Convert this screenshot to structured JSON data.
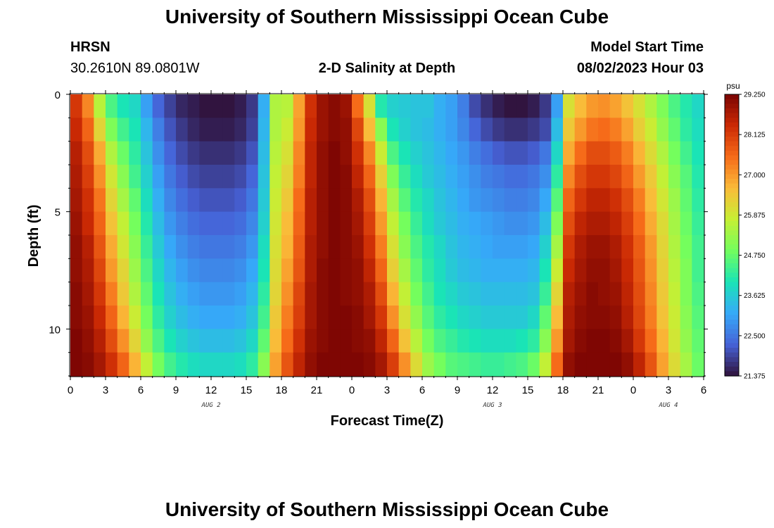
{
  "page": {
    "title": "University of Southern Mississippi Ocean Cube",
    "footer_title": "University of Southern Mississippi Ocean Cube",
    "station": "HRSN",
    "coords": "30.2610N  89.0801W",
    "subtitle": "2-D Salinity at Depth",
    "model_start_label": "Model Start Time",
    "model_start_value": "08/02/2023 Hour 03"
  },
  "chart_data": {
    "type": "heatmap",
    "title": "2-D Salinity at Depth",
    "xlabel": "Forecast Time(Z)",
    "ylabel": "Depth (ft)",
    "x_tick_labels": [
      "0",
      "3",
      "6",
      "9",
      "12",
      "15",
      "18",
      "21",
      "0",
      "3",
      "6",
      "9",
      "12",
      "15",
      "18",
      "21",
      "0",
      "3",
      "6"
    ],
    "x_date_labels": [
      {
        "label": "AUG 2",
        "hours": 12
      },
      {
        "label": "AUG 3",
        "hours": 36
      },
      {
        "label": "AUG 4",
        "hours": 51
      }
    ],
    "x_range_hours": [
      0,
      54
    ],
    "time_step_hours": 1,
    "y_tick_labels": [
      "0",
      "5",
      "10"
    ],
    "y_range_ft": [
      0,
      12
    ],
    "depth_levels_ft": [
      0.5,
      1.5,
      2.5,
      3.5,
      4.5,
      5.5,
      6.5,
      7.5,
      8.5,
      9.5,
      10.5,
      11.5
    ],
    "colorbar": {
      "unit": "psu",
      "min": 21.375,
      "max": 29.25,
      "tick_labels": [
        "29.250",
        "28.125",
        "27.000",
        "25.875",
        "24.750",
        "23.625",
        "22.500",
        "21.375"
      ],
      "colors": [
        "#30123b",
        "#4662d7",
        "#36aaf9",
        "#1ae4b6",
        "#72fe5e",
        "#c7ef34",
        "#fabb39",
        "#f66b19",
        "#cb2a04",
        "#7a0403"
      ]
    },
    "salinity_psu": [
      [
        28.2,
        27.2,
        25.6,
        24.5,
        24.0,
        23.8,
        23.0,
        22.3,
        21.9,
        21.6,
        21.5,
        21.4,
        21.4,
        21.4,
        21.5,
        21.8,
        23.2,
        25.5,
        25.6,
        26.9,
        28.3,
        28.9,
        29.1,
        28.9,
        27.5,
        26.0,
        24.1,
        23.7,
        23.6,
        23.5,
        23.5,
        23.2,
        23.0,
        22.6,
        22.0,
        21.7,
        21.5,
        21.4,
        21.4,
        21.5,
        21.8,
        23.0,
        26.0,
        26.6,
        27.0,
        27.1,
        26.9,
        26.5,
        26.0,
        25.5,
        25.0,
        24.5,
        24.1,
        23.8
      ],
      [
        28.4,
        27.6,
        26.2,
        25.0,
        24.4,
        24.0,
        23.3,
        22.6,
        22.1,
        21.8,
        21.6,
        21.5,
        21.5,
        21.5,
        21.6,
        21.9,
        23.3,
        25.5,
        25.8,
        27.0,
        28.4,
        28.9,
        29.1,
        29.0,
        28.0,
        26.6,
        25.1,
        24.0,
        23.7,
        23.5,
        23.4,
        23.2,
        23.0,
        22.7,
        22.3,
        22.0,
        21.8,
        21.7,
        21.7,
        21.8,
        22.0,
        23.4,
        26.4,
        27.0,
        27.4,
        27.5,
        27.3,
        26.9,
        26.3,
        25.8,
        25.2,
        24.7,
        24.2,
        23.9
      ],
      [
        28.6,
        27.9,
        26.8,
        25.5,
        24.8,
        24.2,
        23.5,
        22.8,
        22.3,
        22.0,
        21.8,
        21.7,
        21.7,
        21.7,
        21.8,
        22.1,
        23.4,
        25.6,
        26.0,
        27.2,
        28.5,
        29.0,
        29.2,
        29.0,
        28.3,
        27.2,
        25.8,
        24.5,
        24.0,
        23.7,
        23.5,
        23.3,
        23.1,
        22.9,
        22.6,
        22.4,
        22.2,
        22.1,
        22.1,
        22.2,
        22.5,
        23.8,
        26.8,
        27.5,
        27.9,
        27.9,
        27.7,
        27.3,
        26.7,
        26.1,
        25.5,
        24.9,
        24.4,
        24.0
      ],
      [
        28.7,
        28.1,
        27.1,
        25.9,
        25.1,
        24.4,
        23.7,
        23.0,
        22.5,
        22.2,
        22.0,
        21.9,
        21.9,
        21.9,
        22.0,
        22.3,
        23.5,
        25.7,
        26.2,
        27.3,
        28.5,
        29.0,
        29.2,
        29.1,
        28.5,
        27.6,
        26.3,
        25.0,
        24.3,
        23.9,
        23.6,
        23.4,
        23.2,
        23.0,
        22.8,
        22.6,
        22.5,
        22.4,
        22.4,
        22.5,
        22.8,
        24.2,
        27.2,
        27.9,
        28.2,
        28.2,
        28.0,
        27.6,
        27.0,
        26.4,
        25.7,
        25.1,
        24.6,
        24.1
      ],
      [
        28.8,
        28.3,
        27.4,
        26.2,
        25.4,
        24.7,
        23.9,
        23.2,
        22.7,
        22.4,
        22.2,
        22.1,
        22.1,
        22.1,
        22.2,
        22.5,
        23.6,
        25.8,
        26.4,
        27.5,
        28.6,
        29.0,
        29.2,
        29.1,
        28.7,
        27.9,
        26.7,
        25.4,
        24.6,
        24.1,
        23.8,
        23.5,
        23.3,
        23.1,
        22.9,
        22.8,
        22.7,
        22.6,
        22.6,
        22.7,
        23.1,
        24.6,
        27.6,
        28.2,
        28.5,
        28.5,
        28.3,
        27.9,
        27.3,
        26.6,
        25.9,
        25.3,
        24.7,
        24.2
      ],
      [
        28.9,
        28.4,
        27.6,
        26.5,
        25.7,
        24.9,
        24.1,
        23.4,
        22.9,
        22.6,
        22.4,
        22.3,
        22.3,
        22.3,
        22.4,
        22.7,
        23.7,
        25.9,
        26.6,
        27.6,
        28.6,
        29.0,
        29.2,
        29.1,
        28.8,
        28.1,
        27.0,
        25.7,
        24.9,
        24.3,
        23.9,
        23.6,
        23.4,
        23.2,
        23.1,
        23.0,
        22.9,
        22.8,
        22.8,
        22.9,
        23.4,
        25.0,
        27.9,
        28.5,
        28.7,
        28.7,
        28.5,
        28.1,
        27.5,
        26.8,
        26.1,
        25.4,
        24.8,
        24.3
      ],
      [
        29.0,
        28.6,
        27.8,
        26.8,
        25.9,
        25.1,
        24.3,
        23.6,
        23.1,
        22.8,
        22.6,
        22.5,
        22.5,
        22.5,
        22.6,
        22.9,
        23.9,
        26.0,
        26.7,
        27.7,
        28.7,
        29.0,
        29.2,
        29.1,
        28.9,
        28.3,
        27.3,
        26.0,
        25.1,
        24.5,
        24.1,
        23.8,
        23.5,
        23.3,
        23.2,
        23.1,
        23.0,
        23.0,
        23.0,
        23.1,
        23.7,
        25.4,
        28.2,
        28.7,
        28.9,
        28.9,
        28.7,
        28.3,
        27.7,
        27.0,
        26.2,
        25.5,
        24.9,
        24.4
      ],
      [
        29.0,
        28.7,
        28.0,
        27.0,
        26.2,
        25.3,
        24.5,
        23.8,
        23.3,
        23.0,
        22.8,
        22.7,
        22.7,
        22.7,
        22.8,
        23.1,
        24.0,
        26.1,
        26.9,
        27.8,
        28.7,
        29.1,
        29.2,
        29.1,
        29.0,
        28.5,
        27.6,
        26.3,
        25.4,
        24.7,
        24.2,
        23.9,
        23.6,
        23.4,
        23.3,
        23.2,
        23.2,
        23.2,
        23.2,
        23.3,
        24.0,
        25.8,
        28.4,
        28.8,
        29.0,
        29.0,
        28.8,
        28.4,
        27.8,
        27.1,
        26.3,
        25.6,
        25.0,
        24.4
      ],
      [
        29.1,
        28.8,
        28.2,
        27.3,
        26.4,
        25.5,
        24.7,
        24.0,
        23.5,
        23.2,
        23.0,
        22.9,
        22.9,
        22.9,
        23.0,
        23.3,
        24.2,
        26.2,
        27.1,
        28.0,
        28.8,
        29.1,
        29.2,
        29.1,
        29.0,
        28.7,
        27.9,
        26.7,
        25.7,
        24.9,
        24.4,
        24.0,
        23.8,
        23.6,
        23.5,
        23.4,
        23.4,
        23.4,
        23.4,
        23.5,
        24.3,
        26.2,
        28.6,
        28.9,
        29.1,
        29.0,
        28.9,
        28.5,
        27.9,
        27.2,
        26.4,
        25.7,
        25.0,
        24.5
      ],
      [
        29.1,
        28.9,
        28.4,
        27.6,
        26.7,
        25.8,
        24.9,
        24.2,
        23.7,
        23.4,
        23.2,
        23.1,
        23.1,
        23.1,
        23.2,
        23.5,
        24.4,
        26.4,
        27.3,
        28.1,
        28.8,
        29.1,
        29.2,
        29.2,
        29.1,
        28.8,
        28.2,
        27.1,
        26.0,
        25.2,
        24.6,
        24.2,
        24.0,
        23.8,
        23.7,
        23.6,
        23.6,
        23.6,
        23.6,
        23.8,
        24.7,
        26.6,
        28.7,
        29.0,
        29.1,
        29.1,
        29.0,
        28.6,
        28.0,
        27.3,
        26.5,
        25.8,
        25.1,
        24.6
      ],
      [
        29.2,
        29.0,
        28.6,
        27.9,
        27.1,
        26.2,
        25.2,
        24.5,
        24.0,
        23.7,
        23.5,
        23.4,
        23.4,
        23.4,
        23.5,
        23.8,
        24.7,
        26.6,
        27.5,
        28.3,
        28.9,
        29.1,
        29.2,
        29.2,
        29.1,
        29.0,
        28.5,
        27.6,
        26.5,
        25.6,
        24.9,
        24.5,
        24.3,
        24.1,
        24.0,
        23.9,
        23.9,
        23.9,
        24.0,
        24.2,
        25.1,
        27.0,
        28.8,
        29.1,
        29.2,
        29.2,
        29.1,
        28.8,
        28.2,
        27.5,
        26.7,
        25.9,
        25.2,
        24.7
      ],
      [
        29.2,
        29.1,
        28.8,
        28.3,
        27.6,
        26.7,
        25.7,
        24.9,
        24.4,
        24.1,
        23.9,
        23.8,
        23.8,
        23.8,
        23.9,
        24.2,
        25.1,
        26.9,
        27.8,
        28.5,
        29.0,
        29.2,
        29.2,
        29.2,
        29.2,
        29.1,
        28.8,
        28.1,
        27.1,
        26.1,
        25.3,
        24.9,
        24.6,
        24.5,
        24.4,
        24.3,
        24.3,
        24.4,
        24.5,
        24.8,
        25.7,
        27.5,
        29.0,
        29.2,
        29.2,
        29.2,
        29.2,
        29.0,
        28.5,
        27.8,
        26.9,
        26.1,
        25.4,
        24.8
      ]
    ]
  }
}
